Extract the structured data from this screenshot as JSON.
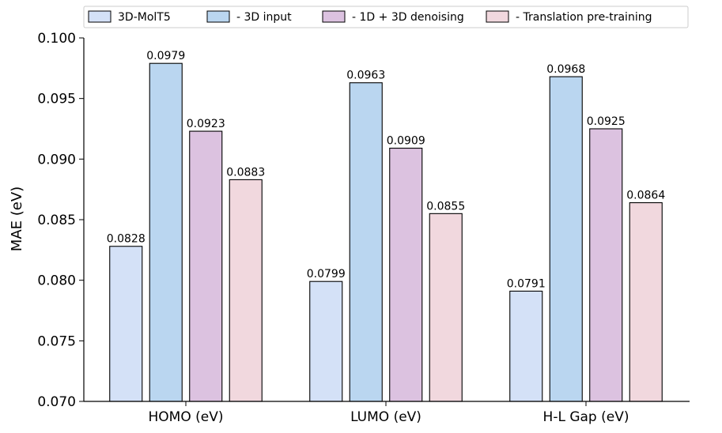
{
  "chart_data": {
    "type": "bar",
    "title": "",
    "xlabel": "",
    "ylabel": "MAE (eV)",
    "ylim": [
      0.07,
      0.1
    ],
    "yticks": [
      "0.070",
      "0.075",
      "0.080",
      "0.085",
      "0.090",
      "0.095",
      "0.100"
    ],
    "ytick_values": [
      0.07,
      0.075,
      0.08,
      0.085,
      0.09,
      0.095,
      0.1
    ],
    "categories": [
      "HOMO (eV)",
      "LUMO (eV)",
      "H-L Gap (eV)"
    ],
    "legend_position": "top",
    "series": [
      {
        "name": "3D-MolT5",
        "color": "#d4e1f7",
        "values": [
          0.0828,
          0.0799,
          0.0791
        ],
        "labels": [
          "0.0828",
          "0.0799",
          "0.0791"
        ]
      },
      {
        "name": "- 3D input",
        "color": "#bad6f0",
        "values": [
          0.0979,
          0.0963,
          0.0968
        ],
        "labels": [
          "0.0979",
          "0.0963",
          "0.0968"
        ]
      },
      {
        "name": "- 1D + 3D denoising",
        "color": "#dcc2e0",
        "values": [
          0.0923,
          0.0909,
          0.0925
        ],
        "labels": [
          "0.0923",
          "0.0909",
          "0.0925"
        ]
      },
      {
        "name": "- Translation pre-training",
        "color": "#f1d8de",
        "values": [
          0.0883,
          0.0855,
          0.0864
        ],
        "labels": [
          "0.0883",
          "0.0855",
          "0.0864"
        ]
      }
    ]
  }
}
